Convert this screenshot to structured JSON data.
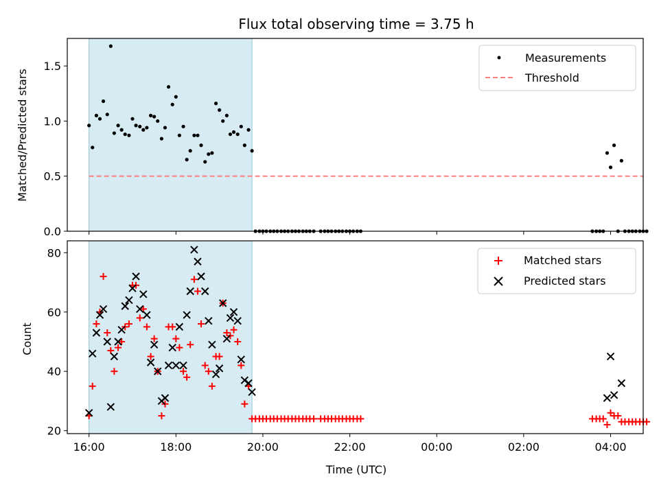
{
  "chart_data": [
    {
      "id": "top",
      "type": "scatter",
      "title": "Flux total observing time = 3.75 h",
      "xlabel": "",
      "ylabel": "Matched/Predicted stars",
      "xlim": [
        15.5,
        28.75
      ],
      "ylim": [
        0,
        1.75
      ],
      "yticks": [
        0.0,
        0.5,
        1.0,
        1.5
      ],
      "ytick_labels": [
        "0.0",
        "0.5",
        "1.0",
        "1.5"
      ],
      "x_tick_labels_visible": false,
      "shaded_region": {
        "x_start": 16.0,
        "x_end": 19.75,
        "color": "#add8e6"
      },
      "legend": {
        "position": "top-right",
        "entries": [
          "Measurements",
          "Threshold"
        ]
      },
      "series": [
        {
          "name": "Measurements",
          "marker": "dot",
          "color": "#000000",
          "points": [
            [
              16.0,
              0.96
            ],
            [
              16.08,
              0.76
            ],
            [
              16.17,
              1.05
            ],
            [
              16.25,
              1.02
            ],
            [
              16.33,
              1.18
            ],
            [
              16.42,
              1.06
            ],
            [
              16.5,
              1.68
            ],
            [
              16.58,
              0.89
            ],
            [
              16.67,
              0.96
            ],
            [
              16.75,
              0.92
            ],
            [
              16.83,
              0.88
            ],
            [
              16.92,
              0.87
            ],
            [
              17.0,
              1.02
            ],
            [
              17.08,
              0.96
            ],
            [
              17.17,
              0.95
            ],
            [
              17.25,
              0.92
            ],
            [
              17.33,
              0.94
            ],
            [
              17.42,
              1.05
            ],
            [
              17.5,
              1.04
            ],
            [
              17.58,
              1.0
            ],
            [
              17.67,
              0.84
            ],
            [
              17.75,
              0.94
            ],
            [
              17.83,
              1.31
            ],
            [
              17.92,
              1.15
            ],
            [
              18.0,
              1.22
            ],
            [
              18.08,
              0.87
            ],
            [
              18.17,
              0.95
            ],
            [
              18.25,
              0.65
            ],
            [
              18.33,
              0.73
            ],
            [
              18.42,
              0.87
            ],
            [
              18.5,
              0.87
            ],
            [
              18.58,
              0.78
            ],
            [
              18.67,
              0.63
            ],
            [
              18.75,
              0.7
            ],
            [
              18.83,
              0.71
            ],
            [
              18.92,
              1.16
            ],
            [
              19.0,
              1.1
            ],
            [
              19.08,
              1.0
            ],
            [
              19.17,
              1.05
            ],
            [
              19.25,
              0.88
            ],
            [
              19.33,
              0.9
            ],
            [
              19.42,
              0.88
            ],
            [
              19.5,
              0.95
            ],
            [
              19.58,
              0.78
            ],
            [
              19.67,
              0.92
            ],
            [
              19.75,
              0.73
            ],
            [
              19.83,
              0.0
            ],
            [
              19.92,
              0.0
            ],
            [
              20.0,
              0.0
            ],
            [
              20.08,
              0.0
            ],
            [
              20.17,
              0.0
            ],
            [
              20.25,
              0.0
            ],
            [
              20.33,
              0.0
            ],
            [
              20.42,
              0.0
            ],
            [
              20.5,
              0.0
            ],
            [
              20.58,
              0.0
            ],
            [
              20.67,
              0.0
            ],
            [
              20.75,
              0.0
            ],
            [
              20.83,
              0.0
            ],
            [
              20.92,
              0.0
            ],
            [
              21.0,
              0.0
            ],
            [
              21.08,
              0.0
            ],
            [
              21.17,
              0.0
            ],
            [
              21.33,
              0.0
            ],
            [
              21.42,
              0.0
            ],
            [
              21.5,
              0.0
            ],
            [
              21.58,
              0.0
            ],
            [
              21.67,
              0.0
            ],
            [
              21.75,
              0.0
            ],
            [
              21.83,
              0.0
            ],
            [
              21.92,
              0.0
            ],
            [
              22.0,
              0.0
            ],
            [
              22.08,
              0.0
            ],
            [
              22.17,
              0.0
            ],
            [
              22.25,
              0.0
            ],
            [
              27.58,
              0.0
            ],
            [
              27.67,
              0.0
            ],
            [
              27.75,
              0.0
            ],
            [
              27.83,
              0.0
            ],
            [
              27.92,
              0.71
            ],
            [
              28.0,
              0.58
            ],
            [
              28.08,
              0.78
            ],
            [
              28.17,
              0.0
            ],
            [
              28.25,
              0.64
            ],
            [
              28.33,
              0.0
            ],
            [
              28.42,
              0.0
            ],
            [
              28.5,
              0.0
            ],
            [
              28.58,
              0.0
            ],
            [
              28.67,
              0.0
            ],
            [
              28.75,
              0.0
            ],
            [
              28.83,
              0.0
            ]
          ]
        },
        {
          "name": "Threshold",
          "marker": "dashed-line",
          "color": "#ff7f7f",
          "y": 0.5,
          "x_range": [
            16.0,
            28.75
          ]
        }
      ]
    },
    {
      "id": "bottom",
      "type": "scatter",
      "title": "",
      "xlabel": "Time (UTC)",
      "ylabel": "Count",
      "xlim": [
        15.5,
        28.75
      ],
      "ylim": [
        19,
        84
      ],
      "yticks": [
        20,
        40,
        60,
        80
      ],
      "ytick_labels": [
        "20",
        "40",
        "60",
        "80"
      ],
      "xticks": [
        16,
        18,
        20,
        22,
        24,
        26,
        28
      ],
      "xtick_labels": [
        "16:00",
        "18:00",
        "20:00",
        "22:00",
        "00:00",
        "02:00",
        "04:00"
      ],
      "shaded_region": {
        "x_start": 16.0,
        "x_end": 19.75,
        "color": "#add8e6"
      },
      "legend": {
        "position": "top-right",
        "entries": [
          "Matched stars",
          "Predicted stars"
        ]
      },
      "series": [
        {
          "name": "Matched stars",
          "marker": "plus",
          "color": "#ff0000",
          "points": [
            [
              16.0,
              25
            ],
            [
              16.08,
              35
            ],
            [
              16.17,
              56
            ],
            [
              16.25,
              60
            ],
            [
              16.33,
              72
            ],
            [
              16.42,
              53
            ],
            [
              16.5,
              47
            ],
            [
              16.58,
              40
            ],
            [
              16.67,
              48
            ],
            [
              16.75,
              50
            ],
            [
              16.83,
              55
            ],
            [
              16.92,
              56
            ],
            [
              17.0,
              69
            ],
            [
              17.08,
              69
            ],
            [
              17.17,
              58
            ],
            [
              17.25,
              61
            ],
            [
              17.33,
              55
            ],
            [
              17.42,
              45
            ],
            [
              17.5,
              51
            ],
            [
              17.58,
              40
            ],
            [
              17.67,
              25
            ],
            [
              17.75,
              29
            ],
            [
              17.83,
              55
            ],
            [
              17.92,
              55
            ],
            [
              18.0,
              51
            ],
            [
              18.08,
              48
            ],
            [
              18.17,
              40
            ],
            [
              18.25,
              38
            ],
            [
              18.33,
              49
            ],
            [
              18.42,
              71
            ],
            [
              18.5,
              67
            ],
            [
              18.58,
              56
            ],
            [
              18.67,
              42
            ],
            [
              18.75,
              40
            ],
            [
              18.83,
              35
            ],
            [
              18.92,
              45
            ],
            [
              19.0,
              45
            ],
            [
              19.08,
              63
            ],
            [
              19.17,
              53
            ],
            [
              19.25,
              52
            ],
            [
              19.33,
              54
            ],
            [
              19.42,
              50
            ],
            [
              19.5,
              42
            ],
            [
              19.58,
              29
            ],
            [
              19.67,
              35
            ],
            [
              19.75,
              24
            ],
            [
              19.83,
              24
            ],
            [
              19.92,
              24
            ],
            [
              20.0,
              24
            ],
            [
              20.08,
              24
            ],
            [
              20.17,
              24
            ],
            [
              20.25,
              24
            ],
            [
              20.33,
              24
            ],
            [
              20.42,
              24
            ],
            [
              20.5,
              24
            ],
            [
              20.58,
              24
            ],
            [
              20.67,
              24
            ],
            [
              20.75,
              24
            ],
            [
              20.83,
              24
            ],
            [
              20.92,
              24
            ],
            [
              21.0,
              24
            ],
            [
              21.08,
              24
            ],
            [
              21.17,
              24
            ],
            [
              21.33,
              24
            ],
            [
              21.42,
              24
            ],
            [
              21.5,
              24
            ],
            [
              21.58,
              24
            ],
            [
              21.67,
              24
            ],
            [
              21.75,
              24
            ],
            [
              21.83,
              24
            ],
            [
              21.92,
              24
            ],
            [
              22.0,
              24
            ],
            [
              22.08,
              24
            ],
            [
              22.17,
              24
            ],
            [
              22.25,
              24
            ],
            [
              27.58,
              24
            ],
            [
              27.67,
              24
            ],
            [
              27.75,
              24
            ],
            [
              27.83,
              24
            ],
            [
              27.92,
              22
            ],
            [
              28.0,
              26
            ],
            [
              28.08,
              25
            ],
            [
              28.17,
              25
            ],
            [
              28.25,
              23
            ],
            [
              28.33,
              23
            ],
            [
              28.42,
              23
            ],
            [
              28.5,
              23
            ],
            [
              28.58,
              23
            ],
            [
              28.67,
              23
            ],
            [
              28.75,
              23
            ],
            [
              28.83,
              23
            ]
          ]
        },
        {
          "name": "Predicted stars",
          "marker": "cross",
          "color": "#000000",
          "points": [
            [
              16.0,
              26
            ],
            [
              16.08,
              46
            ],
            [
              16.17,
              53
            ],
            [
              16.25,
              59
            ],
            [
              16.33,
              61
            ],
            [
              16.42,
              50
            ],
            [
              16.5,
              28
            ],
            [
              16.58,
              45
            ],
            [
              16.67,
              50
            ],
            [
              16.75,
              54
            ],
            [
              16.83,
              62
            ],
            [
              16.92,
              64
            ],
            [
              17.0,
              68
            ],
            [
              17.08,
              72
            ],
            [
              17.17,
              61
            ],
            [
              17.25,
              66
            ],
            [
              17.33,
              59
            ],
            [
              17.42,
              43
            ],
            [
              17.5,
              49
            ],
            [
              17.58,
              40
            ],
            [
              17.67,
              30
            ],
            [
              17.75,
              31
            ],
            [
              17.83,
              42
            ],
            [
              17.92,
              48
            ],
            [
              18.0,
              42
            ],
            [
              18.08,
              55
            ],
            [
              18.17,
              42
            ],
            [
              18.25,
              59
            ],
            [
              18.33,
              67
            ],
            [
              18.42,
              81
            ],
            [
              18.5,
              77
            ],
            [
              18.58,
              72
            ],
            [
              18.67,
              67
            ],
            [
              18.75,
              57
            ],
            [
              18.83,
              49
            ],
            [
              18.92,
              39
            ],
            [
              19.0,
              41
            ],
            [
              19.08,
              63
            ],
            [
              19.17,
              51
            ],
            [
              19.25,
              58
            ],
            [
              19.33,
              60
            ],
            [
              19.42,
              57
            ],
            [
              19.5,
              44
            ],
            [
              19.58,
              37
            ],
            [
              19.67,
              36
            ],
            [
              19.75,
              33
            ],
            [
              27.92,
              31
            ],
            [
              28.0,
              45
            ],
            [
              28.08,
              32
            ],
            [
              28.25,
              36
            ]
          ]
        }
      ]
    }
  ]
}
